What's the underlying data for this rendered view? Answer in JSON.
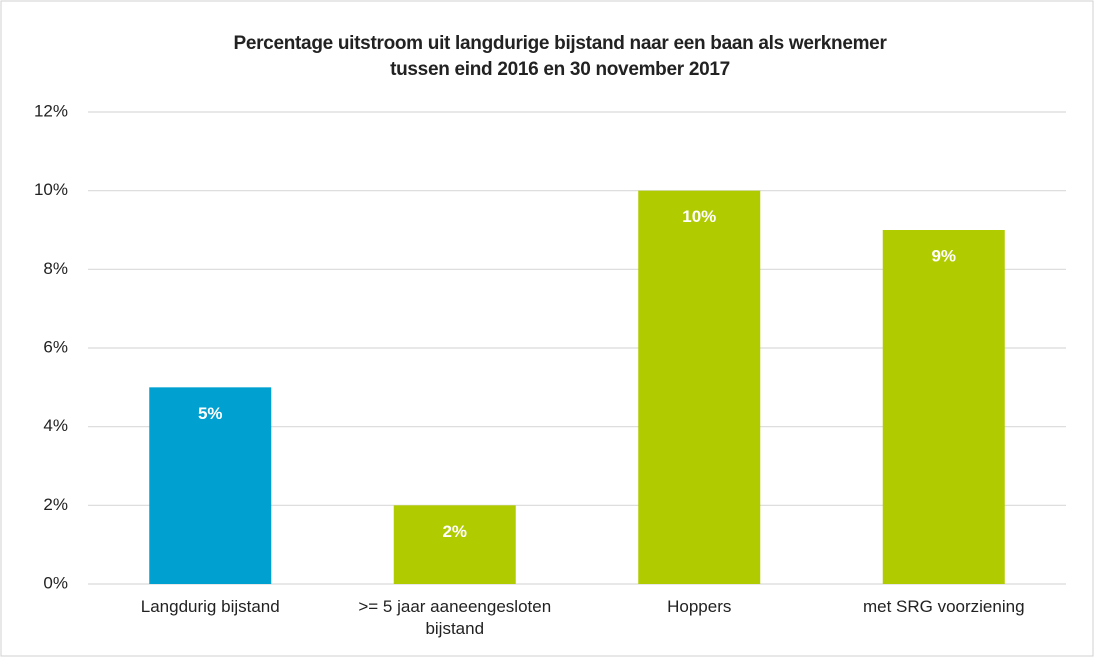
{
  "chart_data": {
    "type": "bar",
    "title": [
      "Percentage uitstroom uit langdurige bijstand naar een baan als werknemer",
      "tussen eind 2016 en 30 november 2017"
    ],
    "categories": [
      "Langdurig bijstand",
      ">= 5 jaar aaneengesloten bijstand",
      "Hoppers",
      "met SRG voorziening"
    ],
    "values": [
      5,
      2,
      10,
      9
    ],
    "value_labels": [
      "5%",
      "2%",
      "10%",
      "9%"
    ],
    "colors": [
      "#00a0d0",
      "#b0cb00",
      "#b0cb00",
      "#b0cb00"
    ],
    "ylim": [
      0,
      12
    ],
    "yticks": [
      {
        "value": 0,
        "label": "0%"
      },
      {
        "value": 2,
        "label": "2%"
      },
      {
        "value": 4,
        "label": "4%"
      },
      {
        "value": 6,
        "label": "6%"
      },
      {
        "value": 8,
        "label": "8%"
      },
      {
        "value": 10,
        "label": "10%"
      },
      {
        "value": 12,
        "label": "12%"
      }
    ],
    "grid": true
  }
}
